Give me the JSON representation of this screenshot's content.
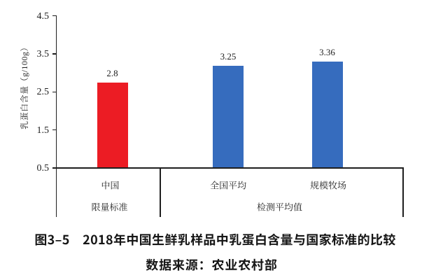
{
  "chart_data": {
    "type": "bar",
    "title": "图3–5　2018年中国生鲜乳样品中乳蛋白含量与国家标准的比较",
    "source_note": "数据来源：农业农村部",
    "ylabel": "乳蛋白含量（g/100g）",
    "ylim": [
      0.5,
      4.5
    ],
    "yticks": [
      "0.5",
      "1.5",
      "2.5",
      "3.5",
      "4.5"
    ],
    "grid": false,
    "legend": false,
    "categories": [
      "中国",
      "全国平均",
      "规模牧场"
    ],
    "values": [
      2.8,
      3.25,
      3.36
    ],
    "value_labels": [
      "2.8",
      "3.25",
      "3.36"
    ],
    "bar_colors": [
      "#ec1c24",
      "#366cbe",
      "#366cbe"
    ],
    "groups": [
      {
        "label": "限量标准",
        "span": [
          0,
          0
        ]
      },
      {
        "label": "检测平均值",
        "span": [
          1,
          2
        ]
      }
    ]
  },
  "colors": {
    "bar_red": "#ec1c24",
    "bar_blue": "#366cbe",
    "axis": "#1e1e1e",
    "background": "#ffffff"
  }
}
